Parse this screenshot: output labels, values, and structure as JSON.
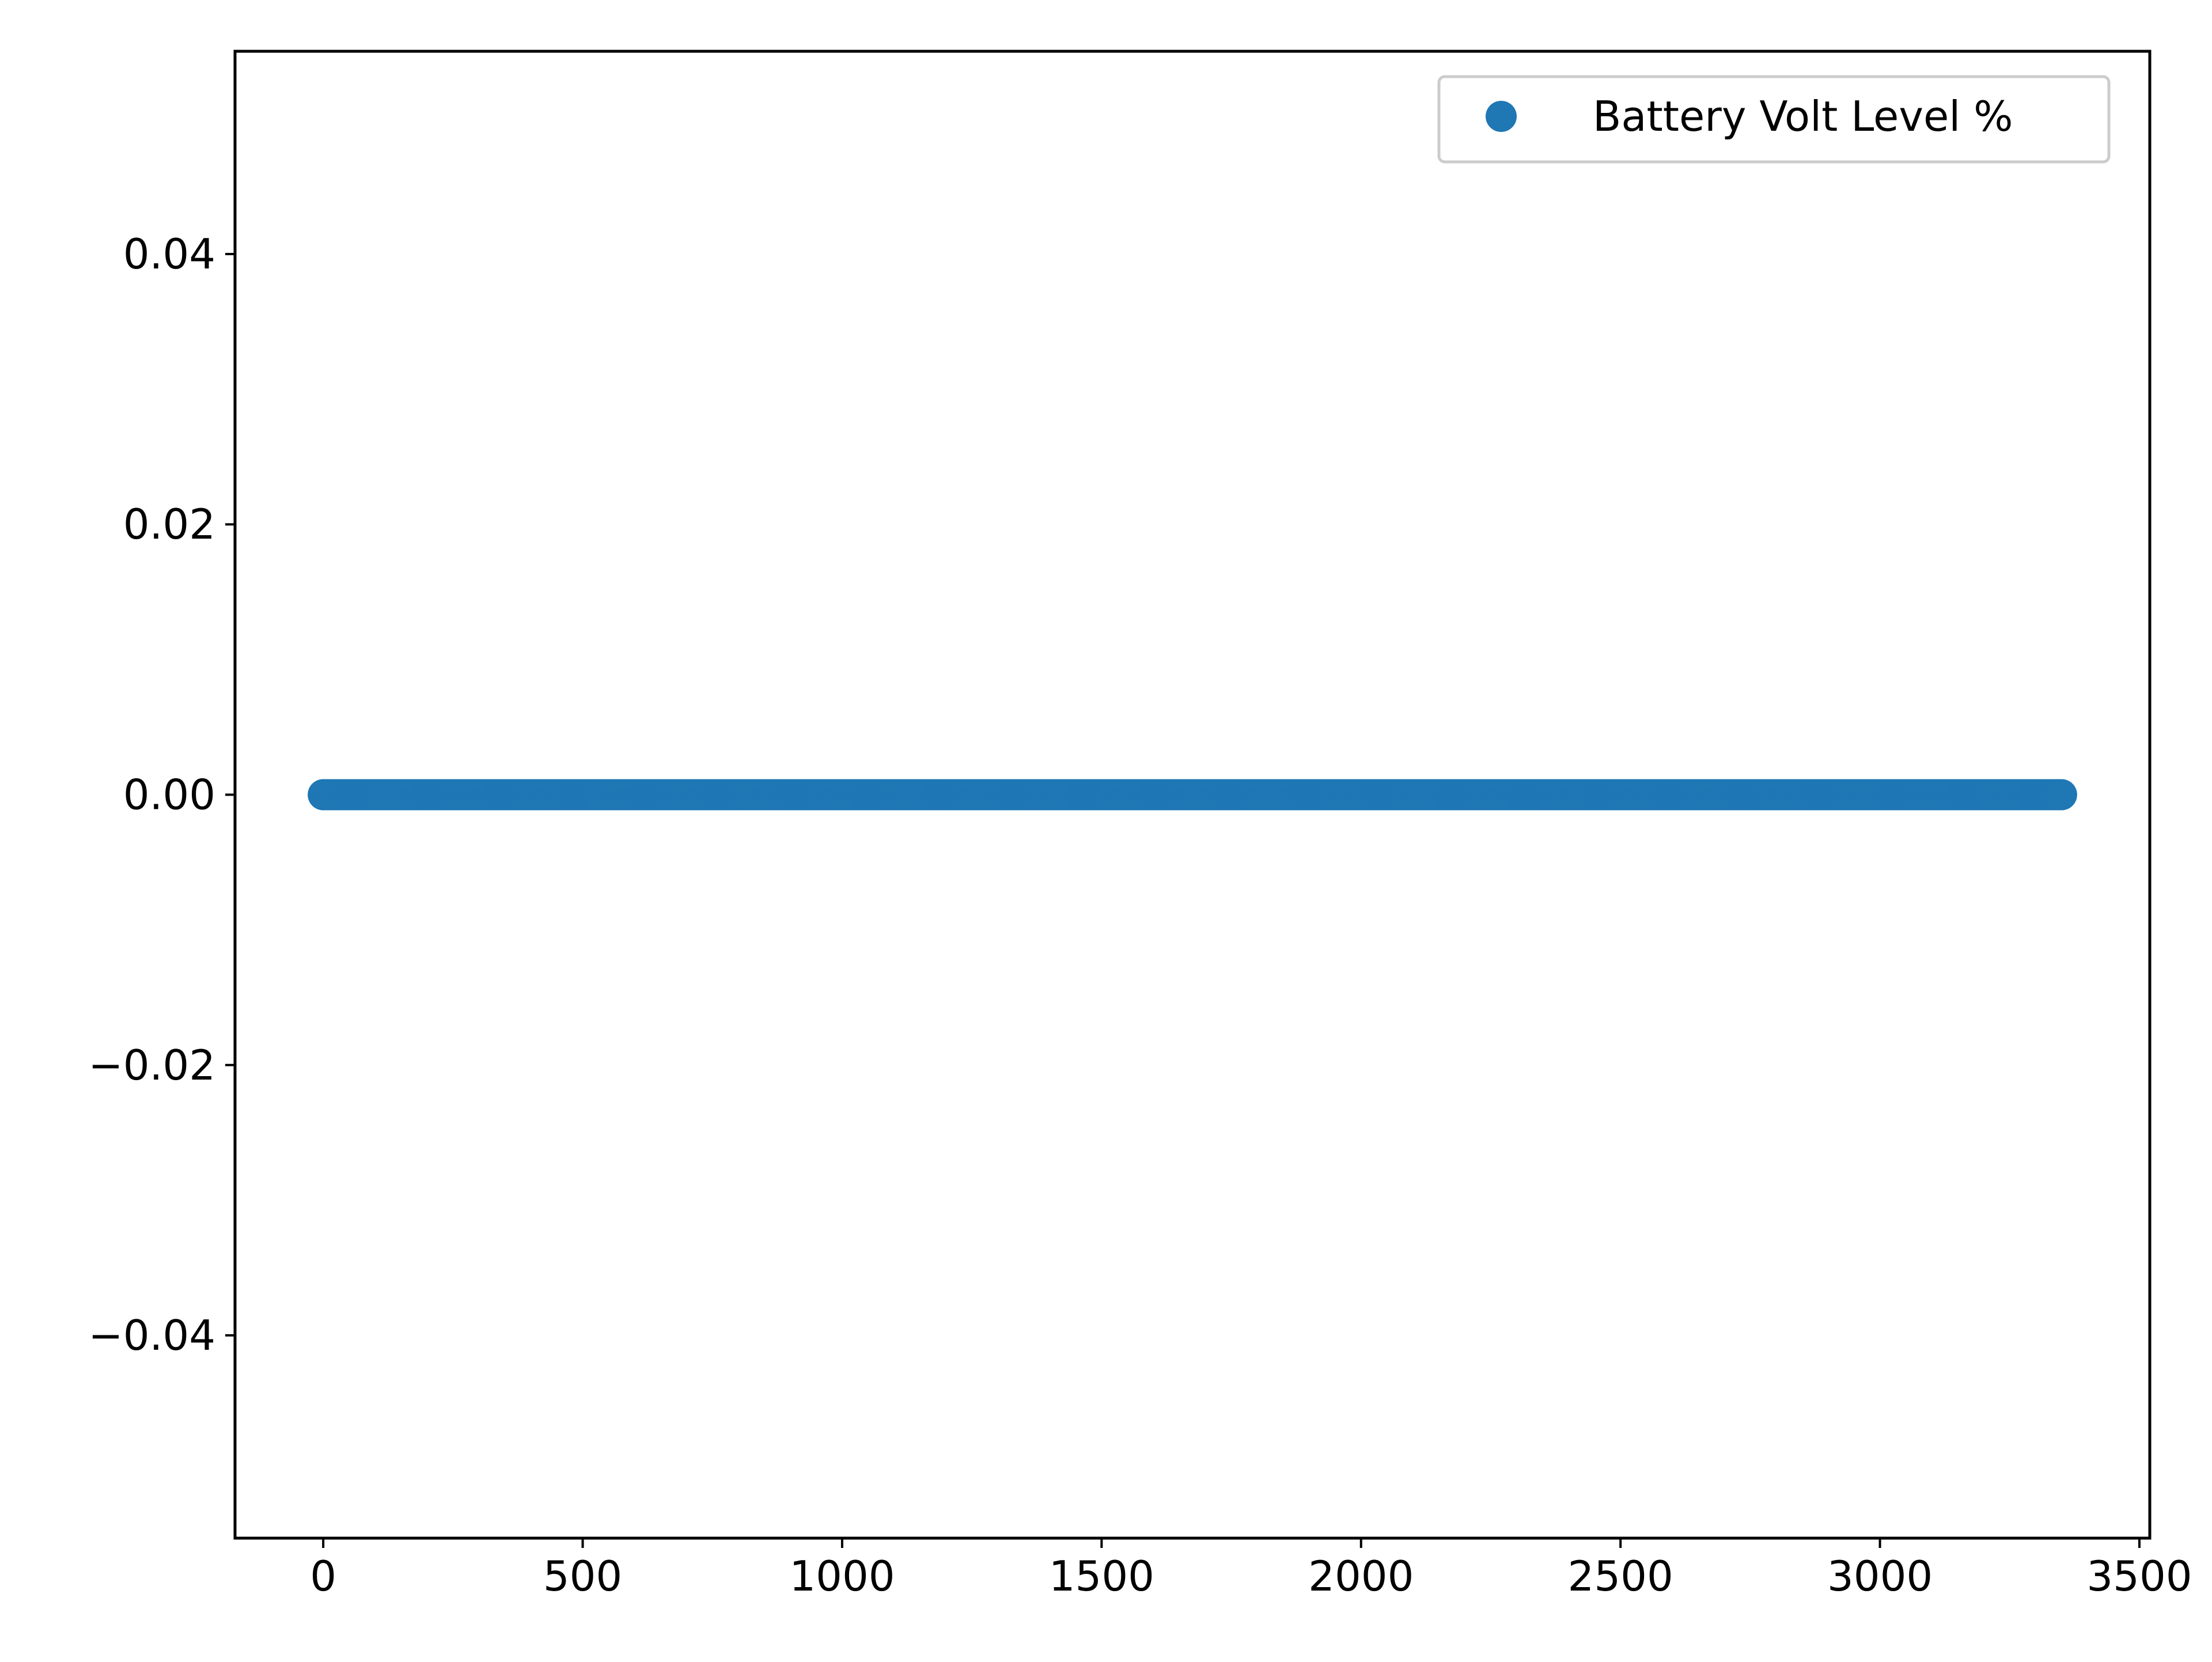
{
  "chart_data": {
    "type": "scatter",
    "title": "",
    "xlabel": "",
    "ylabel": "",
    "xlim": [
      -170,
      3520
    ],
    "ylim": [
      -0.055,
      0.055
    ],
    "x_ticks": [
      0,
      500,
      1000,
      1500,
      2000,
      2500,
      3000,
      3500
    ],
    "x_tick_labels": [
      "0",
      "500",
      "1000",
      "1500",
      "2000",
      "2500",
      "3000",
      "3500"
    ],
    "y_ticks": [
      -0.04,
      -0.02,
      0.0,
      0.02,
      0.04
    ],
    "y_tick_labels": [
      "−0.04",
      "−0.02",
      "0.00",
      "0.02",
      "0.04"
    ],
    "grid": false,
    "legend_position": "top-right",
    "series": [
      {
        "name": "Battery Volt Level %",
        "color": "#1f77b4",
        "marker": "circle",
        "x_range": [
          0,
          3350
        ],
        "x_step": 1,
        "y_value": 0.0
      }
    ]
  }
}
